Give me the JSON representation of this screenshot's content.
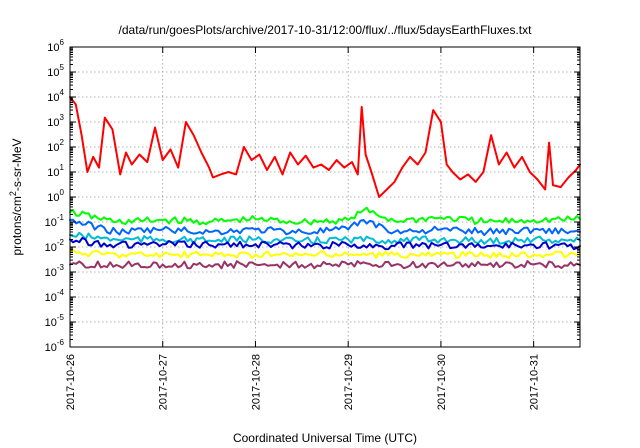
{
  "chart_data": {
    "type": "line",
    "title": "/data/run/goesPlots/archive/2017-10-31/12:00/flux/../flux/5daysEarthFluxes.txt",
    "xlabel": "Coordinated Universal Time (UTC)",
    "ylabel": {
      "prefix": "protons/cm",
      "superscript": "2",
      "suffix": "-s-sr-MeV"
    },
    "yscale": "log",
    "ylim_exponents": [
      -6,
      6
    ],
    "y_tick_base": "10",
    "y_tick_exponents": [
      "6",
      "5",
      "4",
      "3",
      "2",
      "1",
      "0",
      "-1",
      "-2",
      "-3",
      "-4",
      "-5",
      "-6"
    ],
    "x_tick_labels": [
      "2017-10-26",
      "2017-10-27",
      "2017-10-28",
      "2017-10-29",
      "2017-10-30",
      "2017-10-31"
    ],
    "xlim": [
      "2017-10-26T00:00",
      "2017-10-31T12:00"
    ],
    "grid": true,
    "series": [
      {
        "color": "#ff0000",
        "points": [
          [
            "2017-10-26T00:00",
            10000
          ],
          [
            "2017-10-26T01:30",
            5000
          ],
          [
            "2017-10-26T03:00",
            300
          ],
          [
            "2017-10-26T04:30",
            10
          ],
          [
            "2017-10-26T06:00",
            40
          ],
          [
            "2017-10-26T07:30",
            15
          ],
          [
            "2017-10-26T09:00",
            1500
          ],
          [
            "2017-10-26T11:00",
            500
          ],
          [
            "2017-10-26T13:00",
            8
          ],
          [
            "2017-10-26T14:30",
            60
          ],
          [
            "2017-10-26T16:00",
            20
          ],
          [
            "2017-10-26T18:00",
            50
          ],
          [
            "2017-10-26T20:00",
            25
          ],
          [
            "2017-10-26T22:00",
            600
          ],
          [
            "2017-10-27T00:00",
            30
          ],
          [
            "2017-10-27T02:00",
            80
          ],
          [
            "2017-10-27T04:00",
            15
          ],
          [
            "2017-10-27T06:00",
            1000
          ],
          [
            "2017-10-27T08:00",
            300
          ],
          [
            "2017-10-27T10:00",
            60
          ],
          [
            "2017-10-27T12:00",
            15
          ],
          [
            "2017-10-27T13:00",
            6
          ],
          [
            "2017-10-27T15:00",
            8
          ],
          [
            "2017-10-27T17:00",
            10
          ],
          [
            "2017-10-27T19:00",
            8
          ],
          [
            "2017-10-27T21:00",
            100
          ],
          [
            "2017-10-27T23:00",
            30
          ],
          [
            "2017-10-28T01:00",
            50
          ],
          [
            "2017-10-28T03:00",
            12
          ],
          [
            "2017-10-28T05:00",
            40
          ],
          [
            "2017-10-28T07:00",
            8
          ],
          [
            "2017-10-28T09:00",
            60
          ],
          [
            "2017-10-28T11:00",
            20
          ],
          [
            "2017-10-28T13:00",
            45
          ],
          [
            "2017-10-28T15:00",
            15
          ],
          [
            "2017-10-28T17:00",
            20
          ],
          [
            "2017-10-28T19:00",
            12
          ],
          [
            "2017-10-28T21:00",
            30
          ],
          [
            "2017-10-28T23:00",
            15
          ],
          [
            "2017-10-29T01:00",
            25
          ],
          [
            "2017-10-29T02:30",
            8
          ],
          [
            "2017-10-29T03:30",
            4000
          ],
          [
            "2017-10-29T04:30",
            50
          ],
          [
            "2017-10-29T06:00",
            10
          ],
          [
            "2017-10-29T08:00",
            1
          ],
          [
            "2017-10-29T10:00",
            2
          ],
          [
            "2017-10-29T12:00",
            4
          ],
          [
            "2017-10-29T14:00",
            15
          ],
          [
            "2017-10-29T16:00",
            40
          ],
          [
            "2017-10-29T18:00",
            20
          ],
          [
            "2017-10-29T20:00",
            60
          ],
          [
            "2017-10-29T22:00",
            3000
          ],
          [
            "2017-10-30T00:00",
            1000
          ],
          [
            "2017-10-30T01:30",
            20
          ],
          [
            "2017-10-30T03:00",
            10
          ],
          [
            "2017-10-30T05:00",
            5
          ],
          [
            "2017-10-30T07:00",
            8
          ],
          [
            "2017-10-30T09:00",
            4
          ],
          [
            "2017-10-30T11:00",
            10
          ],
          [
            "2017-10-30T13:00",
            300
          ],
          [
            "2017-10-30T15:00",
            20
          ],
          [
            "2017-10-30T17:00",
            60
          ],
          [
            "2017-10-30T19:00",
            15
          ],
          [
            "2017-10-30T21:00",
            40
          ],
          [
            "2017-10-30T23:00",
            10
          ],
          [
            "2017-10-31T01:00",
            5
          ],
          [
            "2017-10-31T03:00",
            2
          ],
          [
            "2017-10-31T04:00",
            150
          ],
          [
            "2017-10-31T05:00",
            3
          ],
          [
            "2017-10-31T07:00",
            2.5
          ],
          [
            "2017-10-31T09:00",
            6
          ],
          [
            "2017-10-31T11:00",
            12
          ],
          [
            "2017-10-31T12:00",
            20
          ]
        ]
      },
      {
        "color": "#00ff00",
        "points": [
          [
            "2017-10-26T00:00",
            0.25
          ],
          [
            "2017-10-26T12:00",
            0.1
          ],
          [
            "2017-10-27T00:00",
            0.12
          ],
          [
            "2017-10-27T12:00",
            0.1
          ],
          [
            "2017-10-28T00:00",
            0.13
          ],
          [
            "2017-10-28T12:00",
            0.1
          ],
          [
            "2017-10-29T00:00",
            0.12
          ],
          [
            "2017-10-29T04:00",
            0.3
          ],
          [
            "2017-10-29T12:00",
            0.11
          ],
          [
            "2017-10-30T00:00",
            0.15
          ],
          [
            "2017-10-30T12:00",
            0.1
          ],
          [
            "2017-10-31T00:00",
            0.12
          ],
          [
            "2017-10-31T12:00",
            0.13
          ]
        ]
      },
      {
        "color": "#0066ff",
        "points": [
          [
            "2017-10-26T00:00",
            0.12
          ],
          [
            "2017-10-26T12:00",
            0.04
          ],
          [
            "2017-10-27T00:00",
            0.05
          ],
          [
            "2017-10-27T12:00",
            0.04
          ],
          [
            "2017-10-28T00:00",
            0.05
          ],
          [
            "2017-10-28T12:00",
            0.04
          ],
          [
            "2017-10-29T00:00",
            0.05
          ],
          [
            "2017-10-29T04:00",
            0.12
          ],
          [
            "2017-10-29T12:00",
            0.04
          ],
          [
            "2017-10-30T00:00",
            0.05
          ],
          [
            "2017-10-30T12:00",
            0.04
          ],
          [
            "2017-10-31T00:00",
            0.05
          ],
          [
            "2017-10-31T12:00",
            0.04
          ]
        ]
      },
      {
        "color": "#00bcd4",
        "points": [
          [
            "2017-10-26T00:00",
            0.03
          ],
          [
            "2017-10-26T12:00",
            0.02
          ],
          [
            "2017-10-27T00:00",
            0.02
          ],
          [
            "2017-10-27T12:00",
            0.018
          ],
          [
            "2017-10-28T00:00",
            0.02
          ],
          [
            "2017-10-28T12:00",
            0.017
          ],
          [
            "2017-10-29T00:00",
            0.02
          ],
          [
            "2017-10-29T12:00",
            0.018
          ],
          [
            "2017-10-30T00:00",
            0.02
          ],
          [
            "2017-10-30T12:00",
            0.017
          ],
          [
            "2017-10-31T00:00",
            0.02
          ],
          [
            "2017-10-31T12:00",
            0.018
          ]
        ]
      },
      {
        "color": "#0000cc",
        "points": [
          [
            "2017-10-26T00:00",
            0.02
          ],
          [
            "2017-10-26T12:00",
            0.012
          ],
          [
            "2017-10-27T00:00",
            0.013
          ],
          [
            "2017-10-27T12:00",
            0.012
          ],
          [
            "2017-10-28T00:00",
            0.013
          ],
          [
            "2017-10-28T12:00",
            0.011
          ],
          [
            "2017-10-29T00:00",
            0.012
          ],
          [
            "2017-10-29T12:00",
            0.011
          ],
          [
            "2017-10-30T00:00",
            0.012
          ],
          [
            "2017-10-30T12:00",
            0.011
          ],
          [
            "2017-10-31T00:00",
            0.012
          ],
          [
            "2017-10-31T12:00",
            0.011
          ]
        ]
      },
      {
        "color": "#ffff00",
        "points": [
          [
            "2017-10-26T00:00",
            0.006
          ],
          [
            "2017-10-26T12:00",
            0.005
          ],
          [
            "2017-10-27T00:00",
            0.005
          ],
          [
            "2017-10-27T12:00",
            0.0048
          ],
          [
            "2017-10-28T00:00",
            0.005
          ],
          [
            "2017-10-28T12:00",
            0.0047
          ],
          [
            "2017-10-29T00:00",
            0.005
          ],
          [
            "2017-10-29T12:00",
            0.0048
          ],
          [
            "2017-10-30T00:00",
            0.005
          ],
          [
            "2017-10-30T12:00",
            0.0047
          ],
          [
            "2017-10-31T00:00",
            0.005
          ],
          [
            "2017-10-31T12:00",
            0.0048
          ]
        ]
      },
      {
        "color": "#993366",
        "points": [
          [
            "2017-10-26T00:00",
            0.002
          ],
          [
            "2017-10-26T12:00",
            0.0019
          ],
          [
            "2017-10-27T00:00",
            0.002
          ],
          [
            "2017-10-27T12:00",
            0.0019
          ],
          [
            "2017-10-28T00:00",
            0.002
          ],
          [
            "2017-10-28T12:00",
            0.0019
          ],
          [
            "2017-10-29T00:00",
            0.002
          ],
          [
            "2017-10-29T12:00",
            0.0019
          ],
          [
            "2017-10-30T00:00",
            0.002
          ],
          [
            "2017-10-30T12:00",
            0.0019
          ],
          [
            "2017-10-31T00:00",
            0.002
          ],
          [
            "2017-10-31T12:00",
            0.0019
          ]
        ]
      }
    ]
  }
}
